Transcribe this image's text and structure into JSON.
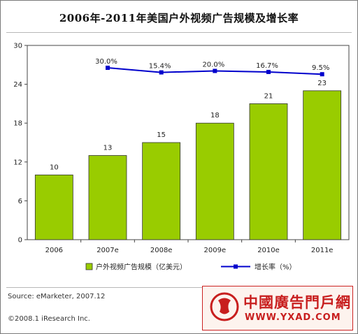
{
  "chart_data": {
    "type": "bar",
    "title": "2006年-2011年美国户外视频广告规模及增长率",
    "categories": [
      "2006",
      "2007e",
      "2008e",
      "2009e",
      "2010e",
      "2011e"
    ],
    "series": [
      {
        "name": "户外视频广告规模（亿美元）",
        "type": "bar",
        "color": "#99cc00",
        "values": [
          10,
          13,
          15,
          18,
          21,
          23
        ]
      },
      {
        "name": "增长率（%）",
        "type": "line",
        "color": "#0000cc",
        "values": [
          null,
          30.0,
          15.4,
          20.0,
          16.7,
          9.5
        ],
        "labels": [
          "",
          "30.0%",
          "15.4%",
          "20.0%",
          "16.7%",
          "9.5%"
        ]
      }
    ],
    "ylim": [
      0,
      30
    ],
    "yticks": [
      "0",
      "6",
      "12",
      "18",
      "24",
      "30"
    ],
    "grid": false,
    "legend_position": "bottom"
  },
  "footer": {
    "source": "Source: eMarketer, 2007.12",
    "copyright": "©2008.1 iResearch Inc."
  },
  "watermark": {
    "name": "中國廣告門戶網",
    "url": "WWW.YXAD.COM",
    "accent": "#c81e1e"
  }
}
